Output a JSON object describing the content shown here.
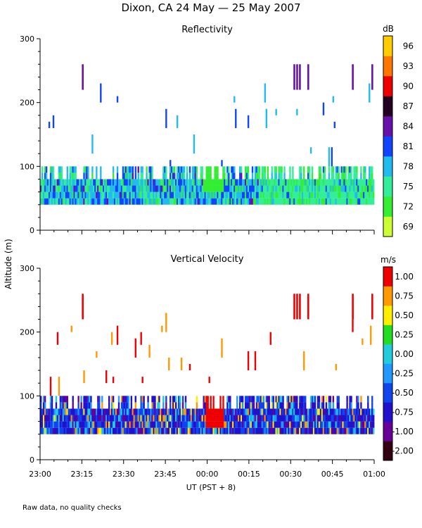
{
  "page": {
    "title": "Dixon, CA 24 May — 25 May 2007",
    "ylabel": "Altitude (m)",
    "xlabel": "UT  (PST + 8)",
    "footnote": "Raw data, no quality checks"
  },
  "chart_data": [
    {
      "type": "heatmap",
      "title": "Reflectivity",
      "colorbar_unit": "dB",
      "colorbar_ticks": [
        "69",
        "72",
        "75",
        "78",
        "81",
        "84",
        "87",
        "90",
        "93",
        "96"
      ],
      "colorbar_colors": [
        "#ccff33",
        "#33ee33",
        "#33ee99",
        "#22bbee",
        "#1144ff",
        "#6611aa",
        "#220022",
        "#ee0000",
        "#ff7700",
        "#ffcc00"
      ],
      "xlabel": "UT  (PST + 8)",
      "ylabel": "Altitude (m)",
      "x_tick_labels": [
        "23:00",
        "23:15",
        "23:30",
        "23:45",
        "00:00",
        "00:15",
        "00:30",
        "00:45",
        "01:00"
      ],
      "y_ticks": [
        0,
        100,
        200,
        300
      ],
      "ylim": [
        0,
        300
      ],
      "xlim_minutes": [
        0,
        120
      ],
      "gate_range_m": [
        40,
        100
      ],
      "value_range_db": [
        69,
        99
      ]
    },
    {
      "type": "heatmap",
      "title": "Vertical Velocity",
      "colorbar_unit": "m/s",
      "colorbar_ticks": [
        "-2.00",
        "-1.00",
        "-0.75",
        "-0.50",
        "-0.25",
        "0.00",
        "0.25",
        "0.50",
        "0.75",
        "1.00"
      ],
      "colorbar_colors": [
        "#330011",
        "#660099",
        "#2211cc",
        "#1144ee",
        "#2299ff",
        "#22ccdd",
        "#22dd22",
        "#ffee00",
        "#ff9900",
        "#ee0000"
      ],
      "xlabel": "UT  (PST + 8)",
      "ylabel": "Altitude (m)",
      "x_tick_labels": [
        "23:00",
        "23:15",
        "23:30",
        "23:45",
        "00:00",
        "00:15",
        "00:30",
        "00:45",
        "01:00"
      ],
      "y_ticks": [
        0,
        100,
        200,
        300
      ],
      "ylim": [
        0,
        300
      ],
      "xlim_minutes": [
        0,
        120
      ],
      "gate_range_m": [
        40,
        100
      ],
      "value_range_ms": [
        -2.0,
        1.25
      ]
    }
  ]
}
